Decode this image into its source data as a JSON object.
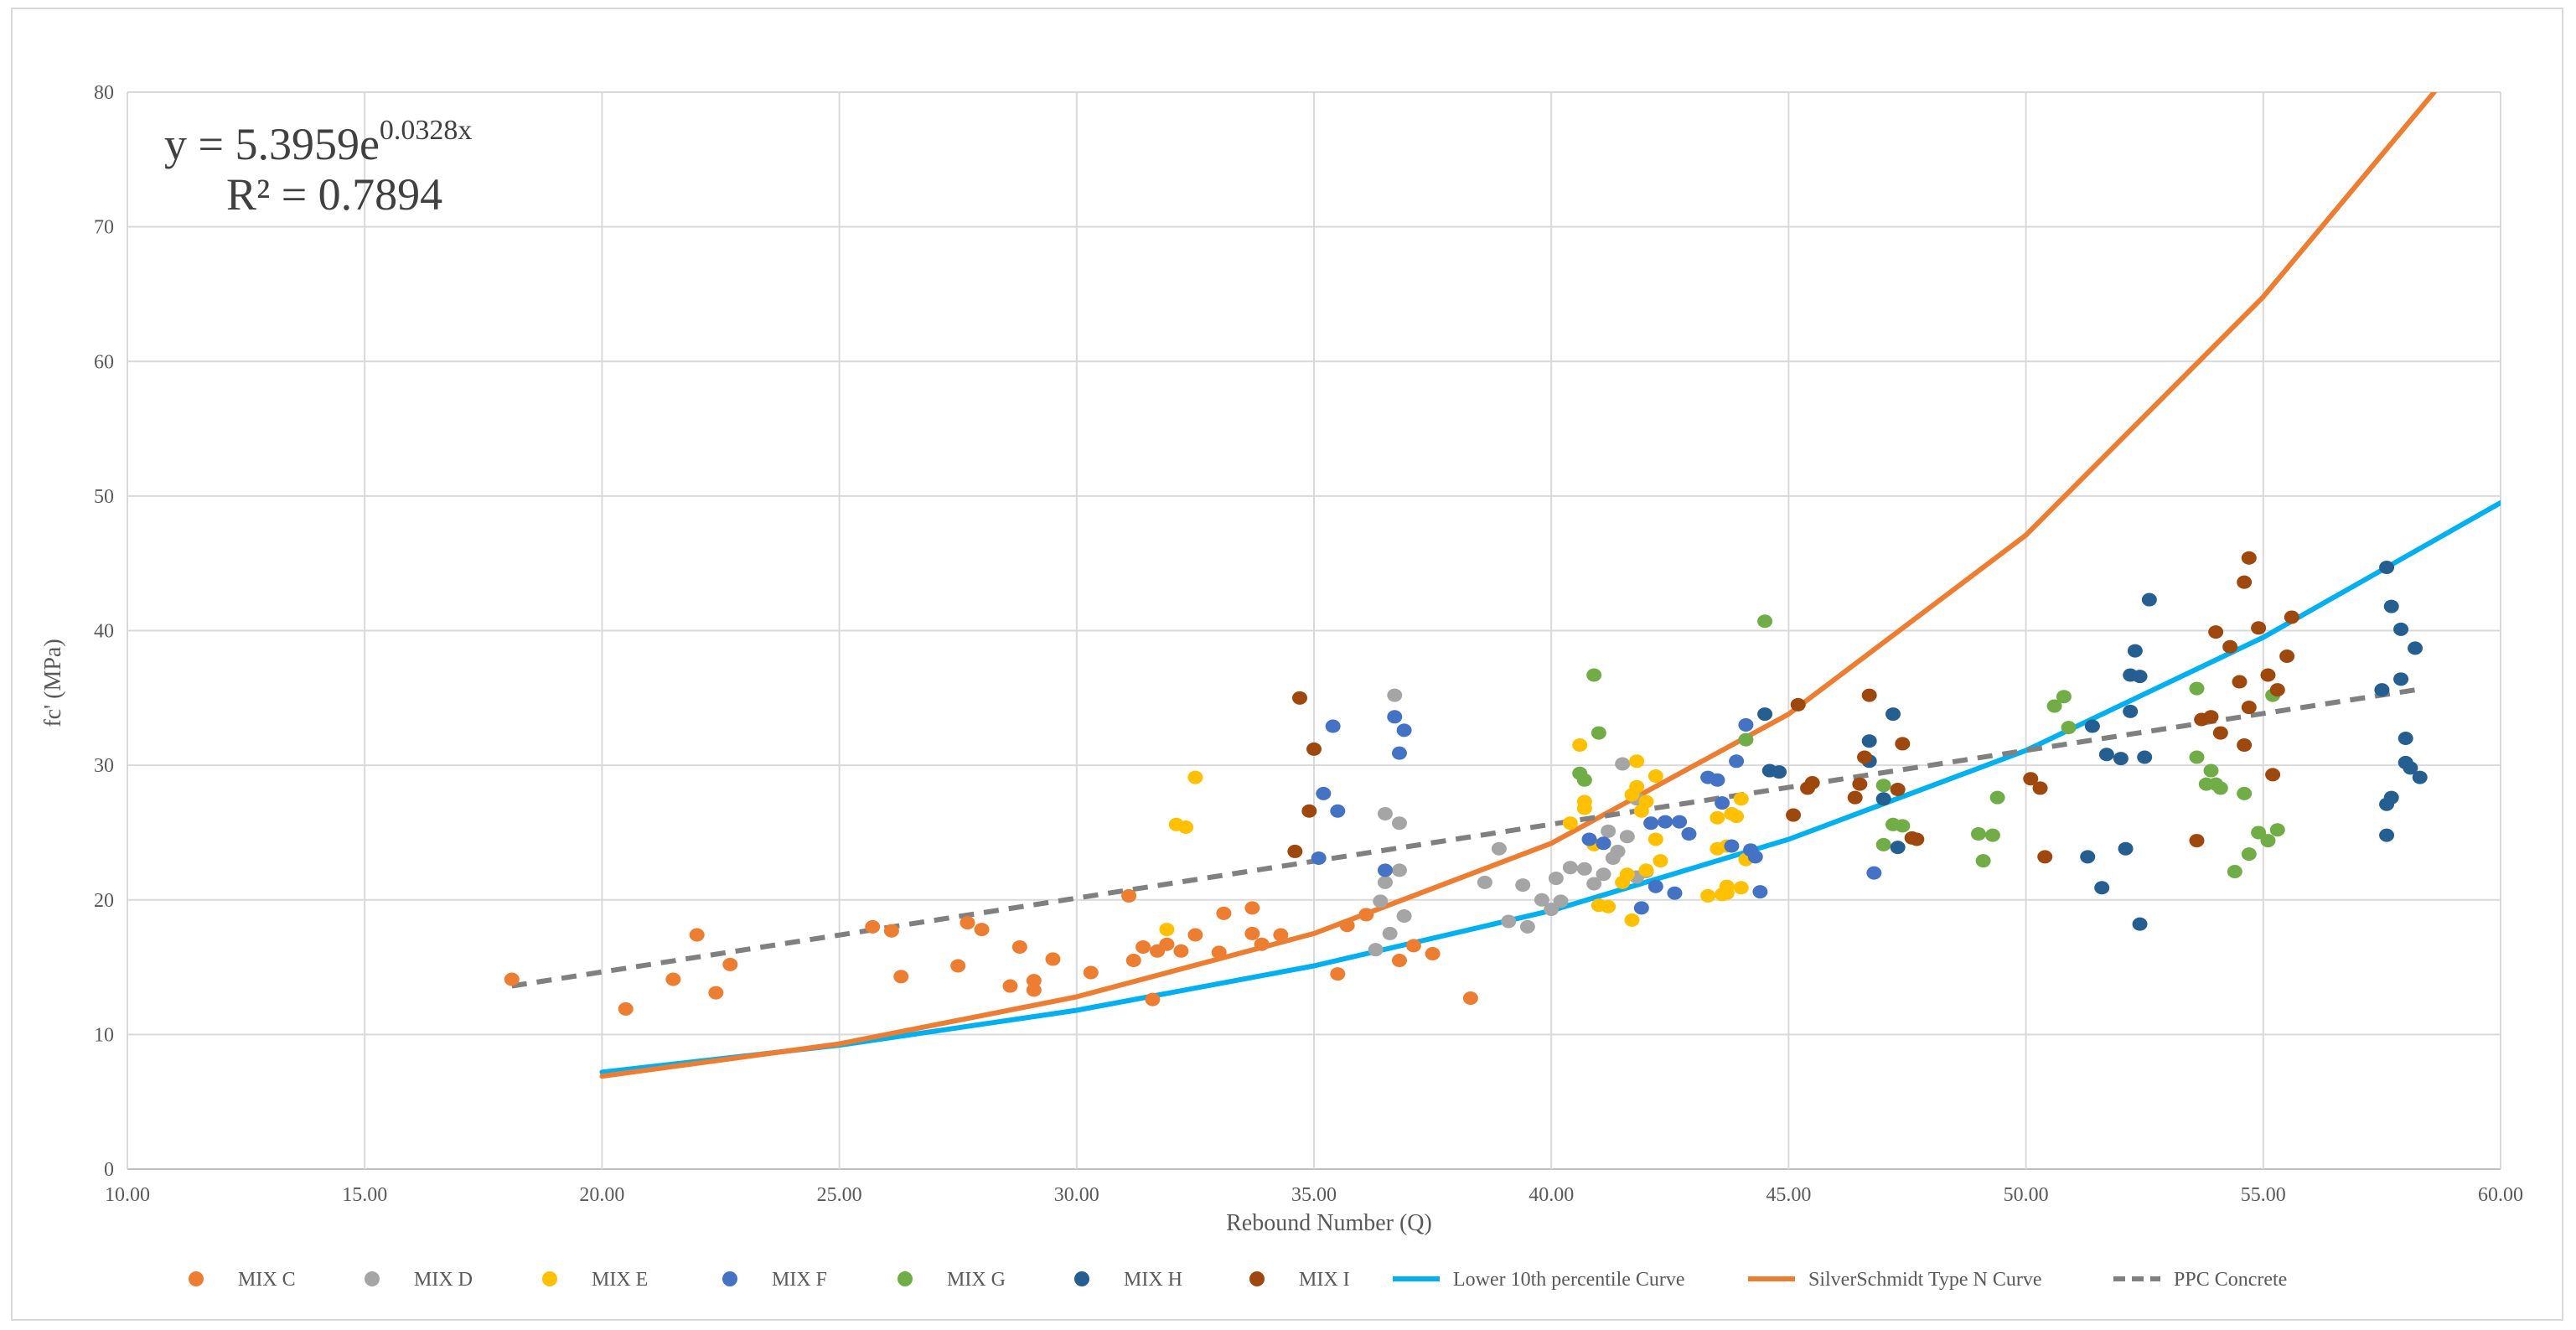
{
  "chart_data": {
    "type": "scatter",
    "xlabel": "Rebound Number (Q)",
    "ylabel": "fc' (MPa)",
    "xlim": [
      10,
      60
    ],
    "ylim": [
      0,
      80
    ],
    "x_ticks": [
      "10.00",
      "15.00",
      "20.00",
      "25.00",
      "30.00",
      "35.00",
      "40.00",
      "45.00",
      "50.00",
      "55.00",
      "60.00"
    ],
    "y_ticks": [
      "0",
      "10",
      "20",
      "30",
      "40",
      "50",
      "60",
      "70",
      "80"
    ],
    "grid": true,
    "legend_position": "bottom",
    "annotation": {
      "equation_prefix": "y = 5.3959e",
      "equation_exponent": "0.0328x",
      "r_squared": "R² = 0.7894"
    },
    "scatter_series": [
      {
        "name": "MIX C",
        "color": "#ED7D31",
        "points": [
          [
            18.1,
            14.1
          ],
          [
            20.5,
            11.9
          ],
          [
            21.5,
            14.1
          ],
          [
            22,
            17.4
          ],
          [
            22.4,
            13.1
          ],
          [
            22.7,
            15.2
          ],
          [
            25.7,
            18
          ],
          [
            26.1,
            17.7
          ],
          [
            26.3,
            14.3
          ],
          [
            27.5,
            15.1
          ],
          [
            27.7,
            18.3
          ],
          [
            28,
            17.8
          ],
          [
            28.6,
            13.6
          ],
          [
            28.8,
            16.5
          ],
          [
            29.1,
            13.3
          ],
          [
            29.1,
            14
          ],
          [
            29.5,
            15.6
          ],
          [
            30.3,
            14.6
          ],
          [
            31.1,
            20.3
          ],
          [
            31.2,
            15.5
          ],
          [
            31.4,
            16.5
          ],
          [
            31.6,
            12.6
          ],
          [
            31.7,
            16.2
          ],
          [
            31.9,
            16.7
          ],
          [
            32.2,
            16.2
          ],
          [
            32.5,
            17.4
          ],
          [
            33,
            16.1
          ],
          [
            33.1,
            19
          ],
          [
            33.7,
            19.4
          ],
          [
            33.7,
            17.5
          ],
          [
            33.9,
            16.7
          ],
          [
            34.3,
            17.4
          ],
          [
            35.5,
            14.5
          ],
          [
            35.7,
            18.1
          ],
          [
            36.1,
            18.9
          ],
          [
            36.8,
            15.5
          ],
          [
            37.1,
            16.6
          ],
          [
            37.5,
            16
          ],
          [
            38.3,
            12.7
          ]
        ]
      },
      {
        "name": "MIX D",
        "color": "#A5A5A5",
        "points": [
          [
            36.3,
            16.3
          ],
          [
            36.4,
            19.9
          ],
          [
            36.5,
            26.4
          ],
          [
            36.5,
            21.3
          ],
          [
            36.6,
            17.5
          ],
          [
            36.7,
            35.2
          ],
          [
            36.8,
            22.2
          ],
          [
            36.8,
            25.7
          ],
          [
            36.9,
            18.8
          ],
          [
            38.6,
            21.3
          ],
          [
            38.9,
            23.8
          ],
          [
            39.1,
            18.4
          ],
          [
            39.4,
            21.1
          ],
          [
            39.5,
            18
          ],
          [
            39.8,
            20
          ],
          [
            40,
            19.3
          ],
          [
            40.1,
            21.6
          ],
          [
            40.2,
            19.9
          ],
          [
            40.4,
            22.4
          ],
          [
            40.7,
            22.3
          ],
          [
            40.9,
            21.2
          ],
          [
            41.1,
            21.9
          ],
          [
            41.2,
            25.1
          ],
          [
            41.3,
            23.1
          ],
          [
            41.4,
            23.6
          ],
          [
            41.5,
            30.1
          ],
          [
            41.6,
            24.7
          ],
          [
            41.8,
            27.5
          ],
          [
            41.8,
            21.7
          ],
          [
            42,
            22.1
          ]
        ]
      },
      {
        "name": "MIX E",
        "color": "#FFC000",
        "points": [
          [
            31.9,
            17.8
          ],
          [
            32.1,
            25.6
          ],
          [
            32.3,
            25.4
          ],
          [
            32.5,
            29.1
          ],
          [
            40.4,
            25.7
          ],
          [
            40.6,
            31.5
          ],
          [
            40.7,
            27.3
          ],
          [
            40.7,
            26.8
          ],
          [
            40.9,
            24.1
          ],
          [
            41,
            19.6
          ],
          [
            41.2,
            19.5
          ],
          [
            41.5,
            21.3
          ],
          [
            41.6,
            21.9
          ],
          [
            41.7,
            27.8
          ],
          [
            41.7,
            18.5
          ],
          [
            41.8,
            28.4
          ],
          [
            41.8,
            30.3
          ],
          [
            41.9,
            26.6
          ],
          [
            42,
            27.3
          ],
          [
            42,
            22.2
          ],
          [
            42.2,
            29.2
          ],
          [
            42.2,
            24.5
          ],
          [
            42.3,
            22.9
          ],
          [
            43.3,
            20.3
          ],
          [
            43.5,
            23.8
          ],
          [
            43.5,
            26.1
          ],
          [
            43.6,
            20.4
          ],
          [
            43.7,
            21
          ],
          [
            43.7,
            20.5
          ],
          [
            43.7,
            24
          ],
          [
            43.8,
            26.4
          ],
          [
            43.9,
            26.2
          ],
          [
            44,
            20.9
          ],
          [
            44,
            27.5
          ],
          [
            44.1,
            23
          ]
        ]
      },
      {
        "name": "MIX F",
        "color": "#4472C4",
        "points": [
          [
            35.1,
            23.1
          ],
          [
            35.2,
            27.9
          ],
          [
            35.4,
            32.9
          ],
          [
            35.5,
            26.6
          ],
          [
            36.5,
            22.2
          ],
          [
            36.7,
            33.6
          ],
          [
            36.8,
            30.9
          ],
          [
            36.9,
            32.6
          ],
          [
            40.8,
            24.5
          ],
          [
            41.1,
            24.2
          ],
          [
            41.9,
            19.4
          ],
          [
            42.1,
            25.7
          ],
          [
            42.2,
            21
          ],
          [
            42.4,
            25.8
          ],
          [
            42.6,
            20.5
          ],
          [
            42.7,
            25.8
          ],
          [
            42.9,
            24.9
          ],
          [
            43.3,
            29.1
          ],
          [
            43.5,
            28.9
          ],
          [
            43.6,
            27.2
          ],
          [
            43.8,
            24
          ],
          [
            43.9,
            30.3
          ],
          [
            44.1,
            33
          ],
          [
            44.2,
            23.7
          ],
          [
            44.3,
            23.2
          ],
          [
            44.4,
            20.6
          ],
          [
            46.8,
            22
          ]
        ]
      },
      {
        "name": "MIX G",
        "color": "#70AD47",
        "points": [
          [
            40.6,
            29.4
          ],
          [
            40.7,
            28.9
          ],
          [
            40.9,
            36.7
          ],
          [
            41,
            32.4
          ],
          [
            44.1,
            31.9
          ],
          [
            44.5,
            40.7
          ],
          [
            47,
            28.5
          ],
          [
            47,
            24.1
          ],
          [
            47.2,
            25.6
          ],
          [
            47.4,
            25.5
          ],
          [
            49,
            24.9
          ],
          [
            49.1,
            22.9
          ],
          [
            49.3,
            24.8
          ],
          [
            49.4,
            27.6
          ],
          [
            50.6,
            34.4
          ],
          [
            50.8,
            35.1
          ],
          [
            50.9,
            32.8
          ],
          [
            53.6,
            35.7
          ],
          [
            53.6,
            30.6
          ],
          [
            53.8,
            28.6
          ],
          [
            53.9,
            29.6
          ],
          [
            54,
            28.6
          ],
          [
            54.1,
            28.3
          ],
          [
            54.4,
            22.1
          ],
          [
            54.6,
            27.9
          ],
          [
            54.7,
            23.4
          ],
          [
            54.9,
            25
          ],
          [
            55.1,
            24.4
          ],
          [
            55.2,
            35.2
          ],
          [
            55.3,
            25.2
          ]
        ]
      },
      {
        "name": "MIX H",
        "color": "#255E91",
        "points": [
          [
            44.5,
            33.8
          ],
          [
            44.6,
            29.6
          ],
          [
            44.8,
            29.5
          ],
          [
            46.7,
            30.3
          ],
          [
            46.7,
            31.8
          ],
          [
            47,
            27.5
          ],
          [
            47.2,
            33.8
          ],
          [
            47.3,
            23.9
          ],
          [
            51.3,
            23.2
          ],
          [
            51.4,
            32.9
          ],
          [
            51.6,
            20.9
          ],
          [
            51.7,
            30.8
          ],
          [
            52,
            30.5
          ],
          [
            52.1,
            23.8
          ],
          [
            52.2,
            36.7
          ],
          [
            52.2,
            34
          ],
          [
            52.3,
            38.5
          ],
          [
            52.4,
            18.2
          ],
          [
            52.4,
            36.6
          ],
          [
            52.5,
            30.6
          ],
          [
            52.6,
            42.3
          ],
          [
            57.5,
            35.6
          ],
          [
            57.6,
            24.8
          ],
          [
            57.6,
            27.1
          ],
          [
            57.6,
            44.7
          ],
          [
            57.7,
            27.6
          ],
          [
            57.7,
            41.8
          ],
          [
            57.9,
            36.4
          ],
          [
            58,
            30.2
          ],
          [
            58,
            32
          ],
          [
            58.1,
            29.8
          ],
          [
            58.2,
            38.7
          ],
          [
            58.3,
            29.1
          ],
          [
            57.9,
            40.1
          ]
        ]
      },
      {
        "name": "MIX I",
        "color": "#9E480E",
        "points": [
          [
            34.6,
            23.6
          ],
          [
            34.7,
            35
          ],
          [
            34.9,
            26.6
          ],
          [
            35,
            31.2
          ],
          [
            45.1,
            26.3
          ],
          [
            45.2,
            34.5
          ],
          [
            45.4,
            28.3
          ],
          [
            45.5,
            28.7
          ],
          [
            46.4,
            27.6
          ],
          [
            46.5,
            28.6
          ],
          [
            46.6,
            30.6
          ],
          [
            46.7,
            35.2
          ],
          [
            47.3,
            28.2
          ],
          [
            47.4,
            31.6
          ],
          [
            47.6,
            24.6
          ],
          [
            47.7,
            24.5
          ],
          [
            50.1,
            29
          ],
          [
            50.3,
            28.3
          ],
          [
            50.4,
            23.2
          ],
          [
            53.6,
            24.4
          ],
          [
            53.7,
            33.4
          ],
          [
            54,
            39.9
          ],
          [
            54.1,
            32.4
          ],
          [
            54.3,
            38.8
          ],
          [
            54.5,
            36.2
          ],
          [
            54.6,
            43.6
          ],
          [
            54.6,
            31.5
          ],
          [
            54.7,
            34.3
          ],
          [
            54.7,
            45.4
          ],
          [
            54.9,
            40.2
          ],
          [
            55.1,
            36.7
          ],
          [
            55.2,
            29.3
          ],
          [
            55.3,
            35.6
          ],
          [
            55.5,
            38.1
          ],
          [
            55.6,
            41
          ],
          [
            53.9,
            33.6
          ]
        ]
      }
    ],
    "line_series": [
      {
        "name": "Lower 10th percentile Curve",
        "color": "#00B0F0",
        "style": "solid",
        "points": [
          [
            20,
            7.2
          ],
          [
            25,
            9.2
          ],
          [
            30,
            11.8
          ],
          [
            35,
            15.1
          ],
          [
            40,
            19.2
          ],
          [
            45,
            24.5
          ],
          [
            50,
            31.1
          ],
          [
            55,
            39.5
          ],
          [
            60,
            49.5
          ]
        ]
      },
      {
        "name": "SilverSchmidt Type N Curve",
        "color": "#ED7D31",
        "style": "solid",
        "points": [
          [
            20,
            6.9
          ],
          [
            25,
            9.3
          ],
          [
            30,
            12.8
          ],
          [
            35,
            17.5
          ],
          [
            40,
            24.2
          ],
          [
            45,
            33.8
          ],
          [
            50,
            47.1
          ],
          [
            55,
            64.8
          ],
          [
            58.6,
            80
          ]
        ]
      },
      {
        "name": "PPC Concrete",
        "color": "#808080",
        "style": "dashed",
        "points": [
          [
            18.1,
            13.6
          ],
          [
            58.2,
            35.6
          ]
        ]
      }
    ]
  }
}
